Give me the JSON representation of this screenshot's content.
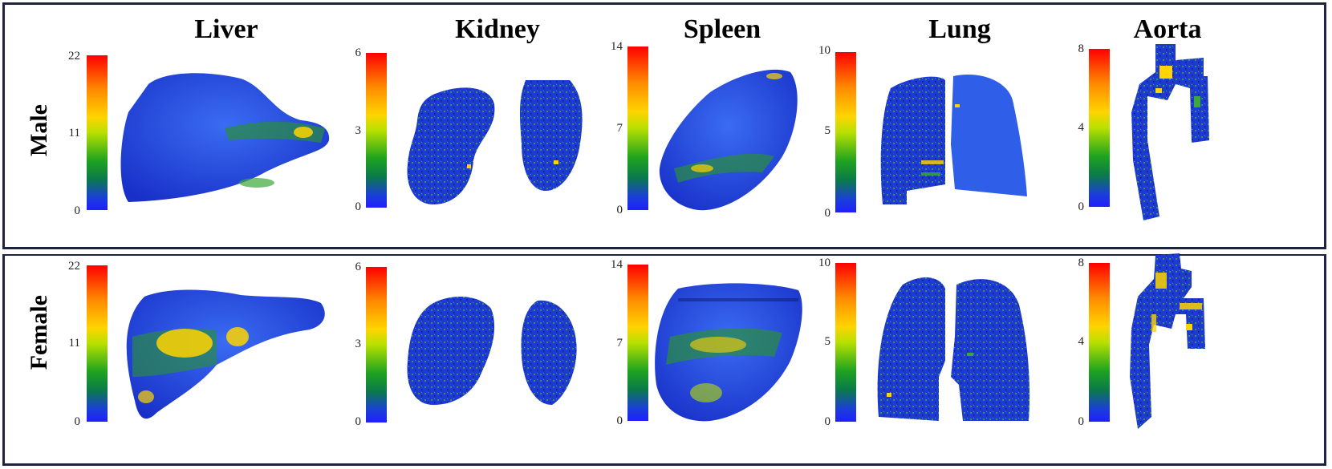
{
  "columns": [
    "Liver",
    "Kidney",
    "Spleen",
    "Lung",
    "Aorta"
  ],
  "rows": [
    "Male",
    "Female"
  ],
  "colorbars": [
    {
      "organ": "Liver",
      "ticks": [
        "22",
        "11",
        "0"
      ],
      "max": 22
    },
    {
      "organ": "Kidney",
      "ticks": [
        "6",
        "3",
        "0"
      ],
      "max": 6
    },
    {
      "organ": "Spleen",
      "ticks": [
        "14",
        "7",
        "0"
      ],
      "max": 14
    },
    {
      "organ": "Lung",
      "ticks": [
        "10",
        "5",
        "0"
      ],
      "max": 10
    },
    {
      "organ": "Aorta",
      "ticks": [
        "8",
        "4",
        "0"
      ],
      "max": 8
    }
  ],
  "colors": {
    "border": "#1d2340",
    "organ_base": "#1f3fd6",
    "highlight": "#ffd400",
    "mid": "#2aa02a"
  }
}
